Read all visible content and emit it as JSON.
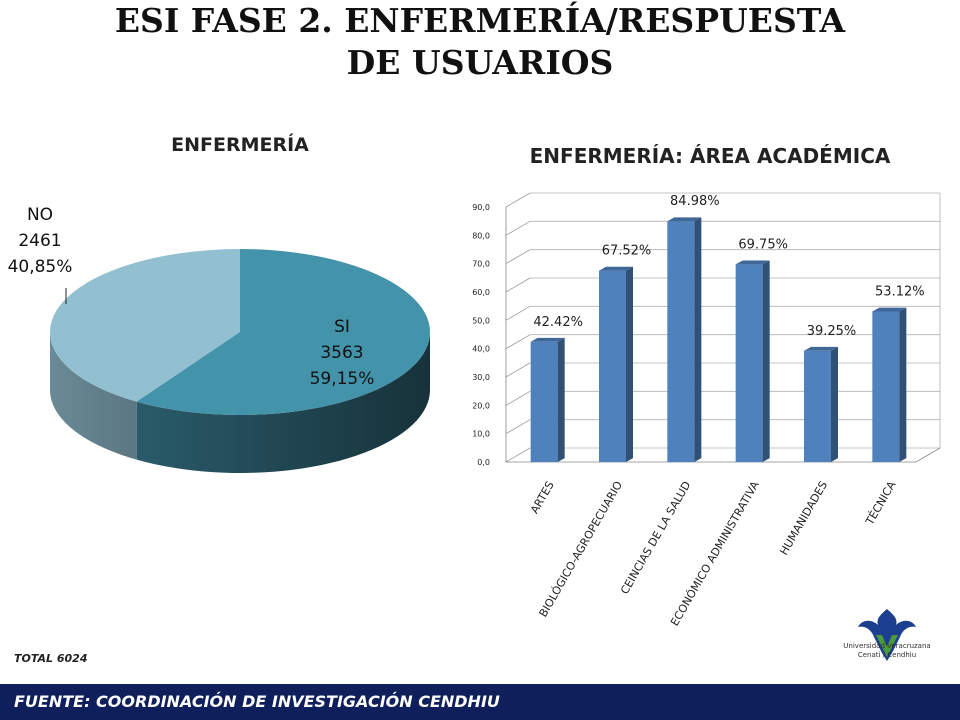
{
  "slide": {
    "title_line1": "ESI FASE 2. ENFERMERÍA/RESPUESTA",
    "title_line2": "DE USUARIOS",
    "total": "TOTAL  6024",
    "footer": "FUENTE:   COORDINACIÓN DE INVESTIGACIÓN CENDHIU",
    "logo_line1": "Universidad Veracruzana",
    "logo_line2": "Cenati / Cendhiu"
  },
  "chart_data": [
    {
      "type": "pie",
      "title": "ENFERMERÍA",
      "slices": [
        {
          "label": "SI",
          "value": 3563,
          "percent_label": "59,15%",
          "color": "#4393ab"
        },
        {
          "label": "NO",
          "value": 2461,
          "percent_label": "40,85%",
          "color": "#92c0d1"
        }
      ]
    },
    {
      "type": "bar",
      "title": "ENFERMERÍA: ÁREA ACADÉMICA",
      "categories": [
        "ARTES",
        "BIOLÓGICO-AGROPECUARIO",
        "CEINCIAS DE LA SALUD",
        "ECONÓMICO ADMINISTRATIVA",
        "HUMANIDADES",
        "TÉCNICA"
      ],
      "values": [
        42.42,
        67.52,
        84.98,
        69.75,
        39.25,
        53.12
      ],
      "data_labels": [
        "42.42%",
        "67.52%",
        "84.98%",
        "69.75%",
        "39.25%",
        "53.12%"
      ],
      "ylim": [
        0,
        90
      ],
      "yticks": [
        "0,0",
        "10,0",
        "20,0",
        "30,0",
        "40,0",
        "50,0",
        "60,0",
        "70,0",
        "80,0",
        "90,0"
      ],
      "grid": true,
      "bar_color": "#4f81bd"
    }
  ]
}
